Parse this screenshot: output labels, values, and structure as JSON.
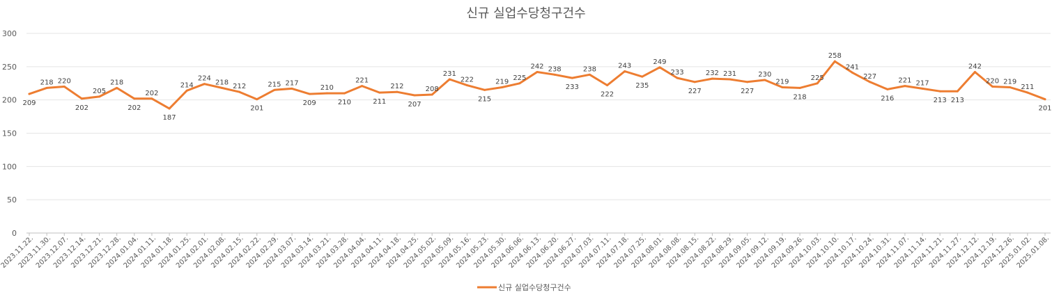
{
  "chart_data": {
    "type": "line",
    "title": "신규 실업수당청구건수",
    "xlabel": "",
    "ylabel": "",
    "ylim": [
      0,
      300
    ],
    "yticks": [
      0,
      50,
      100,
      150,
      200,
      250,
      300
    ],
    "grid": true,
    "legend_position": "bottom",
    "categories": [
      "2023.11.22.",
      "2023.11.30.",
      "2023.12.07.",
      "2023.12.14.",
      "2023.12.21.",
      "2023.12.28.",
      "2024.01.04.",
      "2024.01.11.",
      "2024.01.18.",
      "2024.01.25.",
      "2024.02.01.",
      "2024.02.08.",
      "2024.02.15.",
      "2024.02.22.",
      "2024.02.29.",
      "2024.03.07.",
      "2024.03.14.",
      "2024.03.21.",
      "2024.03.28.",
      "2024.04.04.",
      "2024.04.11.",
      "2024.04.18.",
      "2024.04.25.",
      "2024.05.02.",
      "2024.05.09.",
      "2024.05.16.",
      "2024.05.23.",
      "2024.05.30.",
      "2024.06.06.",
      "2024.06.13.",
      "2024.06.20.",
      "2024.06.27.",
      "2024.07.03.",
      "2024.07.11.",
      "2024.07.18.",
      "2024.07.25.",
      "2024.08.01.",
      "2024.08.08.",
      "2024.08.15.",
      "2024.08.22.",
      "2024.08.29.",
      "2024.09.05.",
      "2024.09.12.",
      "2024.09.19.",
      "2024.09.26.",
      "2024.10.03.",
      "2024.10.10.",
      "2024.10.17.",
      "2024.10.24.",
      "2024.10.31.",
      "2024.11.07.",
      "2024.11.14.",
      "2024.11.21.",
      "2024.11.27.",
      "2024.12.12.",
      "2024.12.19.",
      "2024.12.26.",
      "2025.01.02.",
      "2025.01.08."
    ],
    "series": [
      {
        "name": "신규 실업수당청구건수",
        "color": "#ED7D31",
        "values": [
          209,
          218,
          220,
          202,
          205,
          218,
          202,
          202,
          187,
          214,
          224,
          218,
          212,
          201,
          215,
          217,
          209,
          210,
          210,
          221,
          211,
          212,
          207,
          208,
          231,
          222,
          215,
          219,
          225,
          242,
          238,
          233,
          238,
          222,
          243,
          235,
          249,
          233,
          227,
          232,
          231,
          227,
          230,
          219,
          218,
          225,
          258,
          241,
          227,
          216,
          221,
          217,
          213,
          213,
          242,
          220,
          219,
          211,
          201
        ]
      }
    ]
  }
}
